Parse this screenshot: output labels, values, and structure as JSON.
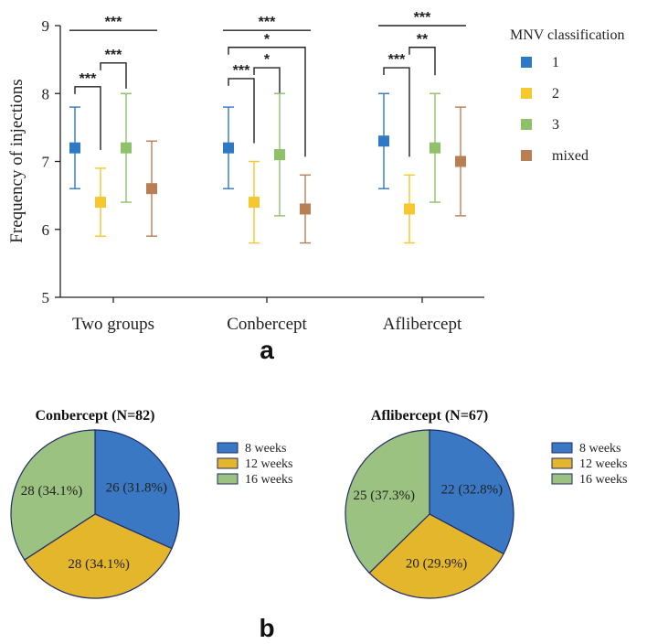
{
  "chart_data": [
    {
      "type": "scatter",
      "subtype": "mean-with-range",
      "panel_label": "a",
      "ylabel": "Frequency of injections",
      "ylim": [
        5,
        9
      ],
      "yticks": [
        "5",
        "6",
        "7",
        "8",
        "9"
      ],
      "categories": [
        "Two groups",
        "Conbercept",
        "Aflibercept"
      ],
      "legend_title": "MNV classification",
      "series": [
        {
          "name": "1",
          "color": "#2f78c4",
          "mean": [
            7.2,
            7.2,
            7.3
          ],
          "low": [
            6.6,
            6.6,
            6.6
          ],
          "high": [
            7.8,
            7.8,
            8.0
          ]
        },
        {
          "name": "2",
          "color": "#f5c830",
          "mean": [
            6.4,
            6.4,
            6.3
          ],
          "low": [
            5.9,
            5.8,
            5.8
          ],
          "high": [
            6.9,
            7.0,
            6.8
          ]
        },
        {
          "name": "3",
          "color": "#8fc06a",
          "mean": [
            7.2,
            7.1,
            7.2
          ],
          "low": [
            6.4,
            6.2,
            6.4
          ],
          "high": [
            8.0,
            8.0,
            8.0
          ]
        },
        {
          "name": "mixed",
          "color": "#b87f55",
          "mean": [
            6.6,
            6.3,
            7.0
          ],
          "low": [
            5.9,
            5.8,
            6.2
          ],
          "high": [
            7.3,
            6.8,
            7.8
          ]
        }
      ],
      "significance": [
        {
          "group": 0,
          "label": "***",
          "type": "line",
          "level": 8.93
        },
        {
          "group": 0,
          "label": "***",
          "from": 2,
          "to": 3,
          "level": 8.45
        },
        {
          "group": 0,
          "label": "***",
          "from": 1,
          "to": 2,
          "level": 8.1
        },
        {
          "group": 1,
          "label": "***",
          "type": "line",
          "level": 8.93
        },
        {
          "group": 1,
          "label": "*",
          "from": 1,
          "to": 4,
          "level": 8.68
        },
        {
          "group": 1,
          "label": "*",
          "from": 2,
          "to": 3,
          "level": 8.38
        },
        {
          "group": 1,
          "label": "***",
          "from": 1,
          "to": 2,
          "level": 8.22
        },
        {
          "group": 2,
          "label": "***",
          "type": "line",
          "level": 9.0
        },
        {
          "group": 2,
          "label": "**",
          "from": 2,
          "to": 3,
          "level": 8.68
        },
        {
          "group": 2,
          "label": "***",
          "from": 1,
          "to": 2,
          "level": 8.38
        }
      ]
    },
    {
      "type": "pie",
      "panel_label": "b",
      "title": "Conbercept (N=82)",
      "slices": [
        {
          "label": "8 weeks",
          "value": 26,
          "text": "26 (31.8%)",
          "color": "#3a78c4"
        },
        {
          "label": "12 weeks",
          "value": 28,
          "text": "28 (34.1%)",
          "color": "#e3b62c"
        },
        {
          "label": "16 weeks",
          "value": 28,
          "text": "28 (34.1%)",
          "color": "#9bc280"
        }
      ]
    },
    {
      "type": "pie",
      "panel_label": "b",
      "title": "Aflibercept (N=67)",
      "slices": [
        {
          "label": "8 weeks",
          "value": 22,
          "text": "22 (32.8%)",
          "color": "#3a78c4"
        },
        {
          "label": "12 weeks",
          "value": 20,
          "text": "20 (29.9%)",
          "color": "#e3b62c"
        },
        {
          "label": "16 weeks",
          "value": 25,
          "text": "25 (37.3%)",
          "color": "#9bc280"
        }
      ]
    }
  ],
  "panel_labels": {
    "a": "a",
    "b": "b"
  }
}
